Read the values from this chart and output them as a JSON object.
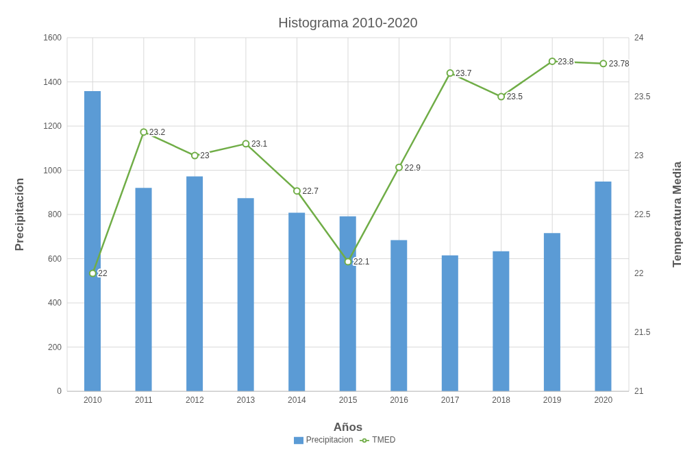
{
  "chart_data": {
    "type": "bar",
    "title": "Histograma 2010-2020",
    "xlabel": "Años",
    "ylabel": "Precipitación",
    "y2label": "Temperatura Media",
    "categories": [
      "2010",
      "2011",
      "2012",
      "2013",
      "2014",
      "2015",
      "2016",
      "2017",
      "2018",
      "2019",
      "2020"
    ],
    "series": [
      {
        "name": "Precipitacion",
        "color": "#5b9bd5",
        "values": [
          1358,
          920,
          972,
          874,
          808,
          792,
          684,
          615,
          634,
          716,
          949
        ]
      },
      {
        "name": "TMED",
        "type": "line",
        "axis": "y2",
        "color": "#70ad47",
        "marker": "circle",
        "values": [
          22,
          23.2,
          23,
          23.1,
          22.7,
          22.1,
          22.9,
          23.7,
          23.5,
          23.8,
          23.78
        ],
        "value_labels": [
          "22",
          "23.2",
          "23",
          "23.1",
          "22.7",
          "22.1",
          "22.9",
          "23.7",
          "23.5",
          "23.8",
          "23.78"
        ]
      }
    ],
    "ylim": [
      0,
      1600
    ],
    "yticks": [
      0,
      200,
      400,
      600,
      800,
      1000,
      1200,
      1400,
      1600
    ],
    "y2lim": [
      21,
      24
    ],
    "y2ticks": [
      21,
      21.5,
      22,
      22.5,
      23,
      23.5,
      24
    ],
    "grid": true,
    "legend": "bottom"
  }
}
